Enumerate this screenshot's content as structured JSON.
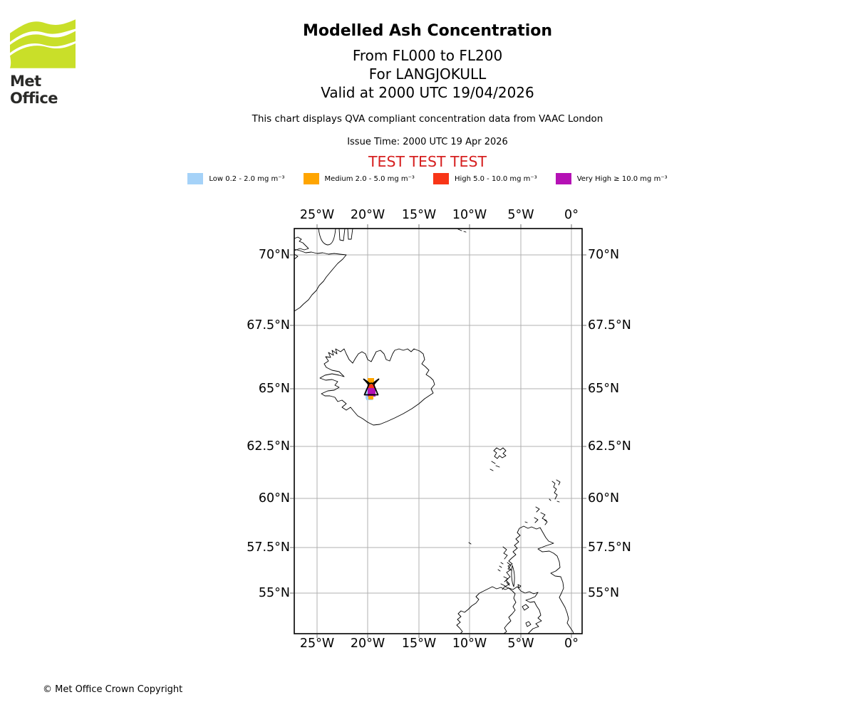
{
  "logo": {
    "brand": "Met Office",
    "color": "#c9df29"
  },
  "header": {
    "title": "Modelled Ash Concentration",
    "subtitle_fl": "From FL000 to FL200",
    "subtitle_volcano": "For LANGJOKULL",
    "subtitle_valid": "Valid at 2000 UTC 19/04/2026",
    "note": "This chart displays QVA compliant concentration data from VAAC London",
    "issue_time": "Issue Time: 2000 UTC 19 Apr 2026",
    "test_banner": "TEST TEST TEST",
    "test_banner_color": "#d62020"
  },
  "legend": {
    "items": [
      {
        "level": "Low",
        "label": "Low 0.2 - 2.0 mg m⁻³",
        "color": "#a5d2f8"
      },
      {
        "level": "Medium",
        "label": "Medium 2.0 - 5.0 mg m⁻³",
        "color": "#ffa500"
      },
      {
        "level": "High",
        "label": "High 5.0 - 10.0 mg m⁻³",
        "color": "#f83517"
      },
      {
        "level": "Very High",
        "label": "Very High ≥ 10.0 mg m⁻³",
        "color": "#b511b5"
      }
    ]
  },
  "map": {
    "x_ticks": [
      "25°W",
      "20°W",
      "15°W",
      "10°W",
      "5°W",
      "0°"
    ],
    "y_ticks": [
      "70°N",
      "67.5°N",
      "65°N",
      "62.5°N",
      "60°N",
      "57.5°N",
      "55°N"
    ],
    "volcano": {
      "name": "LANGJOKULL",
      "symbol": "volcano-triangle"
    },
    "grid_color": "#b0b0b0",
    "coast_color": "#000000"
  },
  "footer": {
    "copyright": "© Met Office Crown Copyright"
  }
}
